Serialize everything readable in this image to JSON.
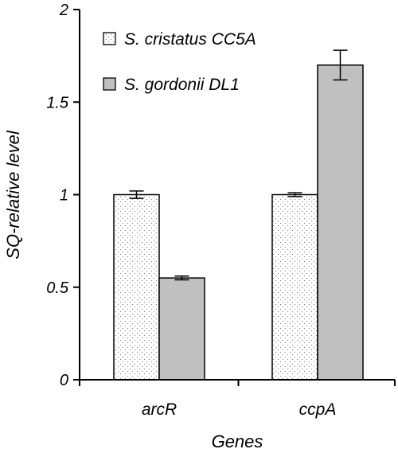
{
  "chart_data": {
    "type": "bar",
    "title": "",
    "xlabel": "Genes",
    "ylabel": "SQ-relative level",
    "ylim": [
      0,
      2
    ],
    "yticks": [
      0,
      0.5,
      1,
      1.5,
      2
    ],
    "ytick_labels": [
      "0",
      "0.5",
      "1",
      "1.5",
      "2"
    ],
    "categories": [
      "arcR",
      "ccpA"
    ],
    "series": [
      {
        "name": "S. cristatus CC5A",
        "values": [
          1.0,
          1.0
        ],
        "errors": [
          0.02,
          0.01
        ],
        "fill": "dotted",
        "color": "#ffffff"
      },
      {
        "name": "S. gordonii DL1",
        "values": [
          0.55,
          1.7
        ],
        "errors": [
          0.01,
          0.08
        ],
        "fill": "solid",
        "color": "#c0c0c0"
      }
    ],
    "legend_position": "top-left",
    "grid": false
  }
}
